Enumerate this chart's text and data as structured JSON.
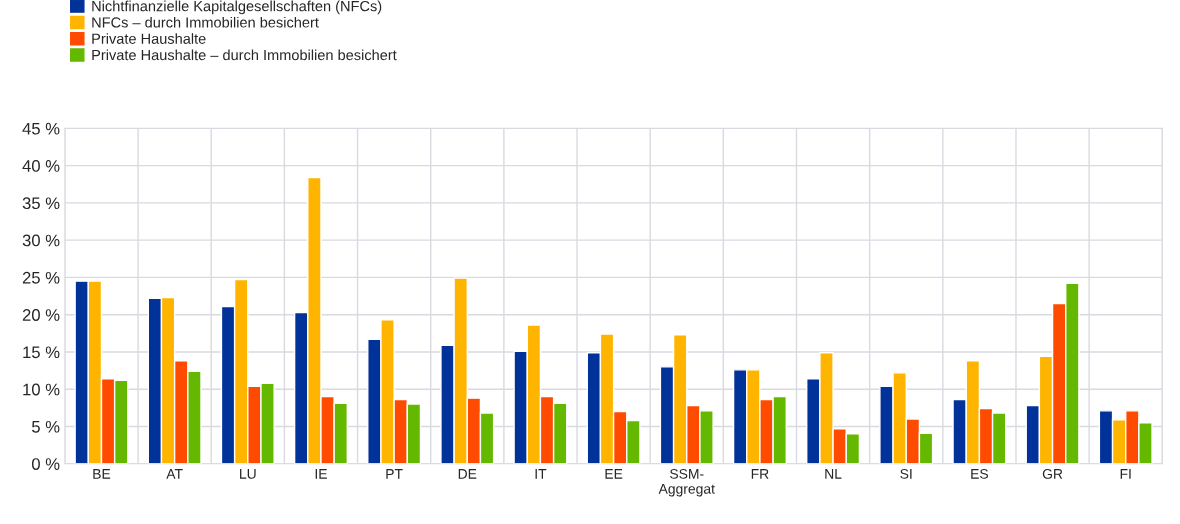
{
  "chart_data": {
    "type": "bar",
    "categories": [
      "BE",
      "AT",
      "LU",
      "IE",
      "PT",
      "DE",
      "IT",
      "EE",
      "SSM-\nAggregat",
      "FR",
      "NL",
      "SI",
      "ES",
      "GR",
      "FI"
    ],
    "series": [
      {
        "name": "Nichtfinanzielle Kapitalgesellschaften (NFCs)",
        "color": "#003299",
        "values": [
          24.5,
          22.2,
          21.1,
          20.3,
          16.7,
          15.9,
          15.1,
          14.9,
          13.0,
          12.6,
          11.4,
          10.4,
          8.6,
          7.8,
          7.1
        ]
      },
      {
        "name": "NFCs – durch Immobilien besichert",
        "color": "#ffb400",
        "values": [
          24.5,
          22.3,
          24.7,
          38.4,
          19.3,
          24.9,
          18.6,
          17.4,
          17.3,
          12.6,
          14.9,
          12.2,
          13.8,
          14.4,
          5.9
        ]
      },
      {
        "name": "Private Haushalte",
        "color": "#ff4b00",
        "values": [
          11.4,
          13.8,
          10.4,
          9.0,
          8.6,
          8.8,
          9.0,
          7.0,
          7.8,
          8.6,
          4.7,
          6.0,
          7.4,
          21.5,
          7.1
        ]
      },
      {
        "name": "Private Haushalte – durch Immobilien besichert",
        "color": "#65b800",
        "values": [
          11.2,
          12.4,
          10.8,
          8.1,
          8.0,
          6.8,
          8.1,
          5.8,
          7.1,
          9.0,
          4.0,
          4.1,
          6.8,
          24.2,
          5.5
        ]
      }
    ],
    "ylim": [
      0,
      45
    ],
    "yticks": [
      {
        "value": 0,
        "label": "0 %"
      },
      {
        "value": 5,
        "label": "5 %"
      },
      {
        "value": 10,
        "label": "10 %"
      },
      {
        "value": 15,
        "label": "15 %"
      },
      {
        "value": 20,
        "label": "20 %"
      },
      {
        "value": 25,
        "label": "25 %"
      },
      {
        "value": 30,
        "label": "30 %"
      },
      {
        "value": 35,
        "label": "35 %"
      },
      {
        "value": 40,
        "label": "40 %"
      },
      {
        "value": 45,
        "label": "45 %"
      }
    ],
    "grid": true,
    "legend": "top left"
  }
}
